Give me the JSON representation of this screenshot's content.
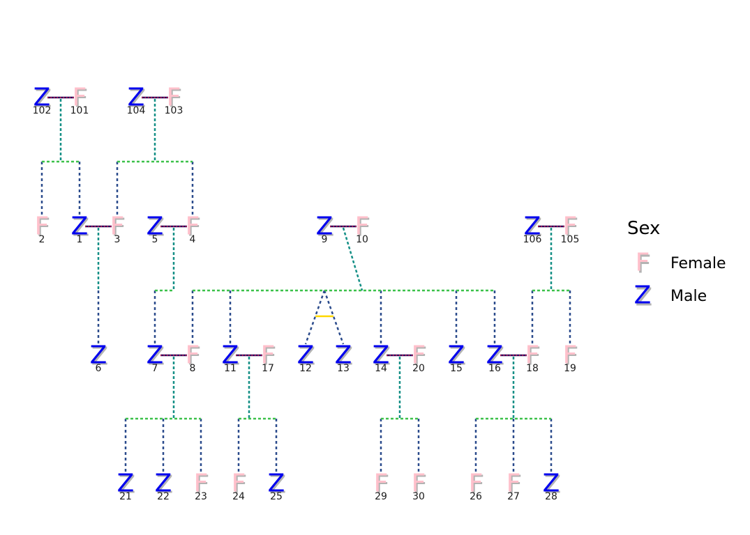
{
  "colors": {
    "female": "#ffc0cb",
    "male": "#0000ee",
    "shadow": "#b3b3b3",
    "spouse_line": "#2b0a5c",
    "spouse_dots": "#e6194b",
    "descent_line": "#148f86",
    "sibling_line": "#3cc14a",
    "child_line": "#2b4b8c",
    "twin_line": "#ffd700"
  },
  "symbols": {
    "female": "F",
    "male": "Z"
  },
  "individuals": [
    {
      "id": "102",
      "sex": "male"
    },
    {
      "id": "101",
      "sex": "female"
    },
    {
      "id": "104",
      "sex": "male"
    },
    {
      "id": "103",
      "sex": "female"
    },
    {
      "id": "2",
      "sex": "female"
    },
    {
      "id": "1",
      "sex": "male"
    },
    {
      "id": "3",
      "sex": "female"
    },
    {
      "id": "5",
      "sex": "male"
    },
    {
      "id": "4",
      "sex": "female"
    },
    {
      "id": "9",
      "sex": "male"
    },
    {
      "id": "10",
      "sex": "female"
    },
    {
      "id": "106",
      "sex": "male"
    },
    {
      "id": "105",
      "sex": "female"
    },
    {
      "id": "6",
      "sex": "male"
    },
    {
      "id": "7",
      "sex": "male"
    },
    {
      "id": "8",
      "sex": "female"
    },
    {
      "id": "11",
      "sex": "male"
    },
    {
      "id": "17",
      "sex": "female"
    },
    {
      "id": "12",
      "sex": "male"
    },
    {
      "id": "13",
      "sex": "male"
    },
    {
      "id": "14",
      "sex": "male"
    },
    {
      "id": "20",
      "sex": "female"
    },
    {
      "id": "15",
      "sex": "male"
    },
    {
      "id": "16",
      "sex": "male"
    },
    {
      "id": "18",
      "sex": "female"
    },
    {
      "id": "19",
      "sex": "female"
    },
    {
      "id": "21",
      "sex": "male"
    },
    {
      "id": "22",
      "sex": "male"
    },
    {
      "id": "23",
      "sex": "female"
    },
    {
      "id": "24",
      "sex": "female"
    },
    {
      "id": "25",
      "sex": "male"
    },
    {
      "id": "29",
      "sex": "female"
    },
    {
      "id": "30",
      "sex": "female"
    },
    {
      "id": "26",
      "sex": "female"
    },
    {
      "id": "27",
      "sex": "female"
    },
    {
      "id": "28",
      "sex": "male"
    }
  ],
  "couples": [
    {
      "a": "102",
      "b": "101",
      "children": [
        "2",
        "1"
      ]
    },
    {
      "a": "104",
      "b": "103",
      "children": [
        "3",
        "4"
      ]
    },
    {
      "a": "1",
      "b": "3",
      "children": [
        "6"
      ]
    },
    {
      "a": "5",
      "b": "4",
      "children": [
        "7"
      ]
    },
    {
      "a": "9",
      "b": "10",
      "children": [
        "8",
        "11",
        "12",
        "13",
        "14",
        "15",
        "16"
      ]
    },
    {
      "a": "106",
      "b": "105",
      "children": [
        "18",
        "19"
      ]
    },
    {
      "a": "7",
      "b": "8",
      "children": [
        "21",
        "22",
        "23"
      ]
    },
    {
      "a": "11",
      "b": "17",
      "children": [
        "24",
        "25"
      ]
    },
    {
      "a": "14",
      "b": "20",
      "children": [
        "29",
        "30"
      ]
    },
    {
      "a": "16",
      "b": "18",
      "children": [
        "26",
        "27",
        "28"
      ]
    }
  ],
  "twins": [
    [
      "12",
      "13"
    ]
  ],
  "legend": {
    "title": "Sex",
    "items": [
      {
        "sex": "female",
        "label": "Female"
      },
      {
        "sex": "male",
        "label": "Male"
      }
    ]
  }
}
